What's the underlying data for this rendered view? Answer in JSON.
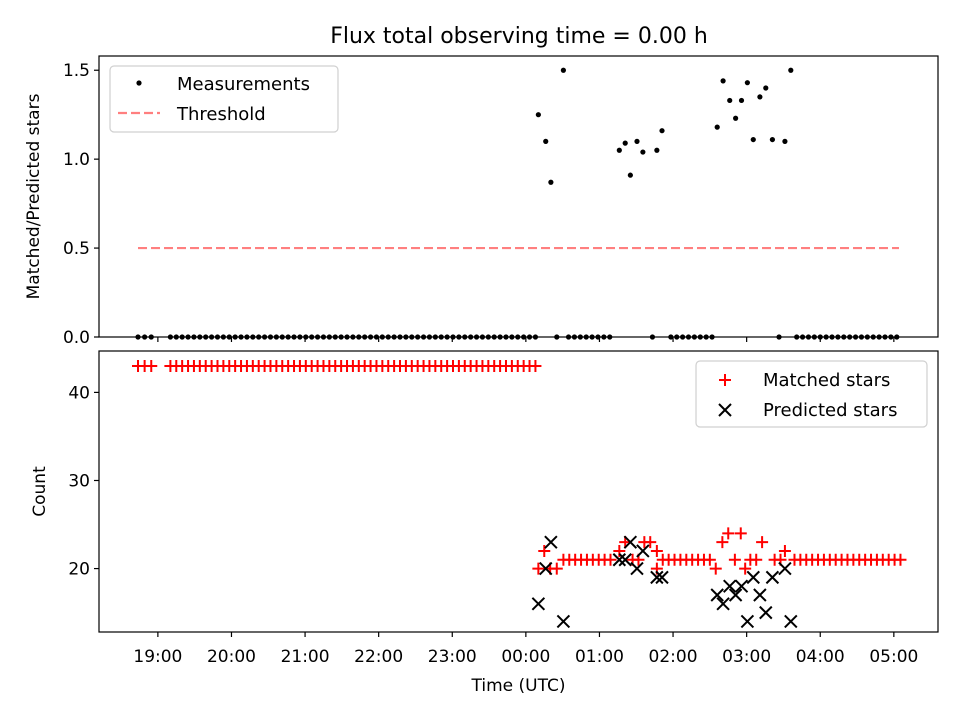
{
  "chart_data": [
    {
      "type": "scatter",
      "title": "Flux total observing time = 0.00 h",
      "xlabel": "",
      "ylabel": "Matched/Predicted stars",
      "xlim": [
        18.2,
        29.6
      ],
      "ylim": [
        0,
        1.58
      ],
      "yticks": [
        0.0,
        0.5,
        1.0,
        1.5
      ],
      "ytick_labels": [
        "0.0",
        "0.5",
        "1.0",
        "1.5"
      ],
      "legend": {
        "position": "upper-left",
        "entries": [
          "Measurements",
          "Threshold"
        ]
      },
      "threshold": {
        "name": "Threshold",
        "y": 0.5,
        "x_start": 18.73,
        "x_end": 29.07,
        "color": "#ff7f7f"
      },
      "measurements_zero_x": [
        18.73,
        18.82,
        18.91,
        19.17,
        19.25,
        19.33,
        19.41,
        19.49,
        19.57,
        19.65,
        19.73,
        19.81,
        19.89,
        19.97,
        20.05,
        20.13,
        20.21,
        20.29,
        20.37,
        20.45,
        20.53,
        20.61,
        20.69,
        20.77,
        20.85,
        20.93,
        21.01,
        21.09,
        21.17,
        21.25,
        21.33,
        21.41,
        21.49,
        21.57,
        21.65,
        21.73,
        21.81,
        21.89,
        21.97,
        22.05,
        22.13,
        22.21,
        22.29,
        22.37,
        22.45,
        22.53,
        22.61,
        22.69,
        22.77,
        22.85,
        22.93,
        23.01,
        23.09,
        23.17,
        23.25,
        23.33,
        23.41,
        23.49,
        23.57,
        23.65,
        23.73,
        23.81,
        23.89,
        23.97,
        24.05,
        24.13,
        24.42,
        24.58,
        24.66,
        24.74,
        24.82,
        24.9,
        24.98,
        25.06,
        25.14,
        25.72,
        25.97,
        26.05,
        26.13,
        26.21,
        26.29,
        26.37,
        26.45,
        26.53,
        27.44,
        27.68,
        27.76,
        27.84,
        27.92,
        28.0,
        28.08,
        28.16,
        28.24,
        28.32,
        28.4,
        28.48,
        28.56,
        28.64,
        28.72,
        28.8,
        28.88,
        28.96,
        29.04
      ],
      "measurements": [
        {
          "x": 24.17,
          "y": 1.25
        },
        {
          "x": 24.27,
          "y": 1.1
        },
        {
          "x": 24.34,
          "y": 0.87
        },
        {
          "x": 24.51,
          "y": 1.5
        },
        {
          "x": 25.27,
          "y": 1.05
        },
        {
          "x": 25.35,
          "y": 1.09
        },
        {
          "x": 25.42,
          "y": 0.91
        },
        {
          "x": 25.51,
          "y": 1.1
        },
        {
          "x": 25.59,
          "y": 1.04
        },
        {
          "x": 25.78,
          "y": 1.05
        },
        {
          "x": 25.85,
          "y": 1.16
        },
        {
          "x": 26.6,
          "y": 1.18
        },
        {
          "x": 26.68,
          "y": 1.44
        },
        {
          "x": 26.77,
          "y": 1.33
        },
        {
          "x": 26.85,
          "y": 1.23
        },
        {
          "x": 26.93,
          "y": 1.33
        },
        {
          "x": 27.01,
          "y": 1.43
        },
        {
          "x": 27.09,
          "y": 1.11
        },
        {
          "x": 27.18,
          "y": 1.35
        },
        {
          "x": 27.26,
          "y": 1.4
        },
        {
          "x": 27.35,
          "y": 1.11
        },
        {
          "x": 27.52,
          "y": 1.1
        },
        {
          "x": 27.6,
          "y": 1.5
        }
      ]
    },
    {
      "type": "scatter",
      "title": "",
      "xlabel": "Time (UTC)",
      "ylabel": "Count",
      "xlim": [
        18.2,
        29.6
      ],
      "ylim": [
        12.8,
        44.7
      ],
      "yticks": [
        20,
        30,
        40
      ],
      "ytick_labels": [
        "20",
        "30",
        "40"
      ],
      "xticks": [
        19,
        20,
        21,
        22,
        23,
        24,
        25,
        26,
        27,
        28,
        29
      ],
      "xtick_labels": [
        "19:00",
        "20:00",
        "21:00",
        "22:00",
        "23:00",
        "00:00",
        "01:00",
        "02:00",
        "03:00",
        "04:00",
        "05:00"
      ],
      "legend": {
        "position": "upper-right",
        "entries": [
          "Matched stars",
          "Predicted stars"
        ]
      },
      "matched_43_x": [
        18.73,
        18.82,
        18.91,
        19.17,
        19.25,
        19.33,
        19.41,
        19.49,
        19.57,
        19.65,
        19.73,
        19.81,
        19.89,
        19.97,
        20.05,
        20.13,
        20.21,
        20.29,
        20.37,
        20.45,
        20.53,
        20.61,
        20.69,
        20.77,
        20.85,
        20.93,
        21.01,
        21.09,
        21.17,
        21.25,
        21.33,
        21.41,
        21.49,
        21.57,
        21.65,
        21.73,
        21.81,
        21.89,
        21.97,
        22.05,
        22.13,
        22.21,
        22.29,
        22.37,
        22.45,
        22.53,
        22.61,
        22.69,
        22.77,
        22.85,
        22.93,
        23.01,
        23.09,
        23.17,
        23.25,
        23.33,
        23.41,
        23.49,
        23.57,
        23.65,
        23.73,
        23.81,
        23.89,
        23.97,
        24.05,
        24.13
      ],
      "matched_21_x": [
        24.51,
        24.59,
        24.67,
        24.75,
        24.83,
        24.91,
        24.99,
        25.07,
        25.15,
        25.45,
        25.53,
        25.86,
        25.94,
        26.02,
        26.1,
        26.18,
        26.26,
        26.34,
        26.42,
        26.5,
        27.05,
        27.13,
        27.38,
        27.46,
        27.65,
        27.73,
        27.81,
        27.89,
        27.97,
        28.05,
        28.13,
        28.21,
        28.29,
        28.37,
        28.45,
        28.53,
        28.61,
        28.69,
        28.77,
        28.85,
        28.93,
        29.01,
        29.09
      ],
      "matched_other": [
        {
          "x": 24.17,
          "y": 20
        },
        {
          "x": 24.25,
          "y": 22
        },
        {
          "x": 24.33,
          "y": 20
        },
        {
          "x": 24.42,
          "y": 20
        },
        {
          "x": 25.27,
          "y": 22
        },
        {
          "x": 25.35,
          "y": 23
        },
        {
          "x": 25.61,
          "y": 23
        },
        {
          "x": 25.69,
          "y": 23
        },
        {
          "x": 25.78,
          "y": 20
        },
        {
          "x": 25.78,
          "y": 22
        },
        {
          "x": 26.58,
          "y": 20
        },
        {
          "x": 26.67,
          "y": 23
        },
        {
          "x": 26.75,
          "y": 24
        },
        {
          "x": 26.84,
          "y": 21
        },
        {
          "x": 26.92,
          "y": 24
        },
        {
          "x": 26.98,
          "y": 20
        },
        {
          "x": 27.21,
          "y": 23
        },
        {
          "x": 27.52,
          "y": 22
        }
      ],
      "predicted": [
        {
          "x": 24.17,
          "y": 16
        },
        {
          "x": 24.27,
          "y": 20
        },
        {
          "x": 24.34,
          "y": 23
        },
        {
          "x": 24.51,
          "y": 14
        },
        {
          "x": 25.27,
          "y": 21
        },
        {
          "x": 25.35,
          "y": 21
        },
        {
          "x": 25.42,
          "y": 23
        },
        {
          "x": 25.51,
          "y": 20
        },
        {
          "x": 25.59,
          "y": 22
        },
        {
          "x": 25.78,
          "y": 19
        },
        {
          "x": 25.85,
          "y": 19
        },
        {
          "x": 26.6,
          "y": 17
        },
        {
          "x": 26.68,
          "y": 16
        },
        {
          "x": 26.77,
          "y": 18
        },
        {
          "x": 26.85,
          "y": 17
        },
        {
          "x": 26.93,
          "y": 18
        },
        {
          "x": 27.01,
          "y": 14
        },
        {
          "x": 27.09,
          "y": 19
        },
        {
          "x": 27.18,
          "y": 17
        },
        {
          "x": 27.26,
          "y": 15
        },
        {
          "x": 27.35,
          "y": 19
        },
        {
          "x": 27.52,
          "y": 20
        },
        {
          "x": 27.6,
          "y": 14
        }
      ]
    }
  ],
  "colors": {
    "matched": "#ff0000",
    "predicted": "#000000",
    "measurement": "#000000",
    "threshold": "#ff7f7f"
  }
}
